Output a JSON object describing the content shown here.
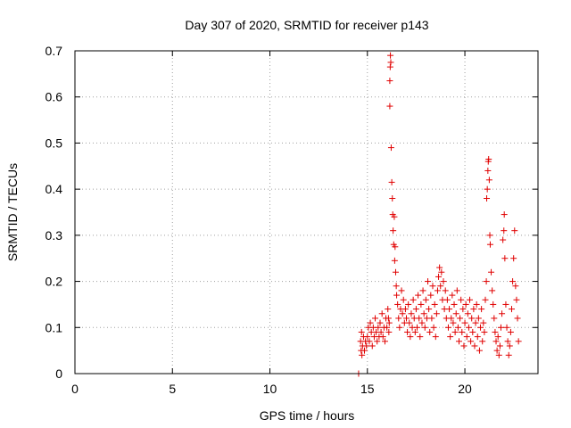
{
  "chart_data": {
    "type": "scatter",
    "title": "Day 307 of 2020, SRMTID for receiver p143",
    "xlabel": "GPS time / hours",
    "ylabel": "SRMTID / TECUs",
    "xlim": [
      0,
      23.75
    ],
    "ylim": [
      0,
      0.7
    ],
    "xticks": [
      0,
      5,
      10,
      15,
      20
    ],
    "yticks": [
      0,
      0.1,
      0.2,
      0.3,
      0.4,
      0.5,
      0.6,
      0.7
    ],
    "xtick_labels": [
      "0",
      "5",
      "10",
      "15",
      "20"
    ],
    "ytick_labels": [
      "0",
      "0.1",
      "0.2",
      "0.3",
      "0.4",
      "0.5",
      "0.6",
      "0.7"
    ],
    "marker": "+",
    "marker_color": "#e00000",
    "grid": true,
    "series": [
      {
        "name": "SRMTID",
        "points": [
          [
            14.55,
            0.0
          ],
          [
            14.65,
            0.07
          ],
          [
            14.68,
            0.05
          ],
          [
            14.7,
            0.09
          ],
          [
            14.72,
            0.04
          ],
          [
            14.75,
            0.06
          ],
          [
            14.8,
            0.08
          ],
          [
            14.85,
            0.05
          ],
          [
            14.9,
            0.07
          ],
          [
            14.95,
            0.06
          ],
          [
            15.0,
            0.08
          ],
          [
            15.05,
            0.1
          ],
          [
            15.1,
            0.07
          ],
          [
            15.15,
            0.11
          ],
          [
            15.2,
            0.09
          ],
          [
            15.25,
            0.06
          ],
          [
            15.3,
            0.1
          ],
          [
            15.35,
            0.08
          ],
          [
            15.4,
            0.12
          ],
          [
            15.45,
            0.09
          ],
          [
            15.5,
            0.07
          ],
          [
            15.55,
            0.1
          ],
          [
            15.6,
            0.08
          ],
          [
            15.65,
            0.11
          ],
          [
            15.7,
            0.09
          ],
          [
            15.75,
            0.13
          ],
          [
            15.8,
            0.08
          ],
          [
            15.85,
            0.1
          ],
          [
            15.9,
            0.07
          ],
          [
            15.95,
            0.12
          ],
          [
            16.0,
            0.1
          ],
          [
            16.05,
            0.14
          ],
          [
            16.08,
            0.12
          ],
          [
            16.1,
            0.09
          ],
          [
            16.12,
            0.11
          ],
          [
            16.15,
            0.58
          ],
          [
            16.15,
            0.635
          ],
          [
            16.17,
            0.665
          ],
          [
            16.18,
            0.69
          ],
          [
            16.2,
            0.675
          ],
          [
            16.22,
            0.49
          ],
          [
            16.25,
            0.415
          ],
          [
            16.28,
            0.38
          ],
          [
            16.3,
            0.345
          ],
          [
            16.32,
            0.31
          ],
          [
            16.35,
            0.28
          ],
          [
            16.38,
            0.34
          ],
          [
            16.4,
            0.245
          ],
          [
            16.42,
            0.275
          ],
          [
            16.45,
            0.22
          ],
          [
            16.48,
            0.19
          ],
          [
            16.5,
            0.17
          ],
          [
            16.55,
            0.15
          ],
          [
            16.6,
            0.12
          ],
          [
            16.65,
            0.1
          ],
          [
            16.7,
            0.14
          ],
          [
            16.75,
            0.18
          ],
          [
            16.8,
            0.13
          ],
          [
            16.85,
            0.16
          ],
          [
            16.9,
            0.11
          ],
          [
            16.95,
            0.14
          ],
          [
            17.0,
            0.12
          ],
          [
            17.05,
            0.09
          ],
          [
            17.1,
            0.15
          ],
          [
            17.15,
            0.11
          ],
          [
            17.2,
            0.08
          ],
          [
            17.25,
            0.13
          ],
          [
            17.3,
            0.1
          ],
          [
            17.35,
            0.16
          ],
          [
            17.4,
            0.12
          ],
          [
            17.45,
            0.09
          ],
          [
            17.5,
            0.14
          ],
          [
            17.55,
            0.1
          ],
          [
            17.6,
            0.17
          ],
          [
            17.65,
            0.12
          ],
          [
            17.7,
            0.08
          ],
          [
            17.75,
            0.15
          ],
          [
            17.8,
            0.11
          ],
          [
            17.85,
            0.18
          ],
          [
            17.9,
            0.13
          ],
          [
            17.95,
            0.1
          ],
          [
            18.0,
            0.16
          ],
          [
            18.05,
            0.12
          ],
          [
            18.1,
            0.2
          ],
          [
            18.15,
            0.14
          ],
          [
            18.2,
            0.09
          ],
          [
            18.25,
            0.17
          ],
          [
            18.3,
            0.12
          ],
          [
            18.35,
            0.19
          ],
          [
            18.4,
            0.1
          ],
          [
            18.45,
            0.15
          ],
          [
            18.5,
            0.08
          ],
          [
            18.55,
            0.13
          ],
          [
            18.6,
            0.18
          ],
          [
            18.65,
            0.21
          ],
          [
            18.7,
            0.23
          ],
          [
            18.75,
            0.19
          ],
          [
            18.8,
            0.22
          ],
          [
            18.85,
            0.16
          ],
          [
            18.9,
            0.2
          ],
          [
            18.95,
            0.14
          ],
          [
            19.0,
            0.18
          ],
          [
            19.05,
            0.12
          ],
          [
            19.1,
            0.16
          ],
          [
            19.15,
            0.1
          ],
          [
            19.2,
            0.14
          ],
          [
            19.25,
            0.08
          ],
          [
            19.3,
            0.12
          ],
          [
            19.35,
            0.17
          ],
          [
            19.4,
            0.11
          ],
          [
            19.45,
            0.15
          ],
          [
            19.5,
            0.09
          ],
          [
            19.55,
            0.13
          ],
          [
            19.6,
            0.18
          ],
          [
            19.65,
            0.1
          ],
          [
            19.7,
            0.07
          ],
          [
            19.75,
            0.12
          ],
          [
            19.8,
            0.16
          ],
          [
            19.85,
            0.09
          ],
          [
            19.9,
            0.14
          ],
          [
            19.95,
            0.06
          ],
          [
            20.0,
            0.11
          ],
          [
            20.05,
            0.15
          ],
          [
            20.1,
            0.08
          ],
          [
            20.15,
            0.13
          ],
          [
            20.2,
            0.1
          ],
          [
            20.25,
            0.16
          ],
          [
            20.3,
            0.07
          ],
          [
            20.35,
            0.12
          ],
          [
            20.4,
            0.09
          ],
          [
            20.45,
            0.14
          ],
          [
            20.5,
            0.06
          ],
          [
            20.55,
            0.11
          ],
          [
            20.6,
            0.15
          ],
          [
            20.65,
            0.08
          ],
          [
            20.7,
            0.12
          ],
          [
            20.75,
            0.05
          ],
          [
            20.8,
            0.1
          ],
          [
            20.85,
            0.14
          ],
          [
            20.9,
            0.07
          ],
          [
            20.95,
            0.11
          ],
          [
            21.0,
            0.09
          ],
          [
            21.05,
            0.16
          ],
          [
            21.1,
            0.2
          ],
          [
            21.12,
            0.38
          ],
          [
            21.15,
            0.4
          ],
          [
            21.18,
            0.44
          ],
          [
            21.2,
            0.46
          ],
          [
            21.22,
            0.465
          ],
          [
            21.25,
            0.42
          ],
          [
            21.28,
            0.3
          ],
          [
            21.3,
            0.28
          ],
          [
            21.35,
            0.22
          ],
          [
            21.4,
            0.18
          ],
          [
            21.45,
            0.15
          ],
          [
            21.5,
            0.12
          ],
          [
            21.55,
            0.09
          ],
          [
            21.6,
            0.07
          ],
          [
            21.65,
            0.05
          ],
          [
            21.7,
            0.08
          ],
          [
            21.75,
            0.04
          ],
          [
            21.8,
            0.06
          ],
          [
            21.85,
            0.1
          ],
          [
            21.9,
            0.13
          ],
          [
            21.95,
            0.29
          ],
          [
            22.0,
            0.31
          ],
          [
            22.02,
            0.345
          ],
          [
            22.05,
            0.25
          ],
          [
            22.1,
            0.15
          ],
          [
            22.15,
            0.1
          ],
          [
            22.2,
            0.07
          ],
          [
            22.25,
            0.04
          ],
          [
            22.3,
            0.06
          ],
          [
            22.35,
            0.09
          ],
          [
            22.4,
            0.14
          ],
          [
            22.45,
            0.2
          ],
          [
            22.5,
            0.25
          ],
          [
            22.55,
            0.31
          ],
          [
            22.6,
            0.19
          ],
          [
            22.65,
            0.16
          ],
          [
            22.7,
            0.12
          ],
          [
            22.75,
            0.07
          ]
        ]
      }
    ]
  }
}
